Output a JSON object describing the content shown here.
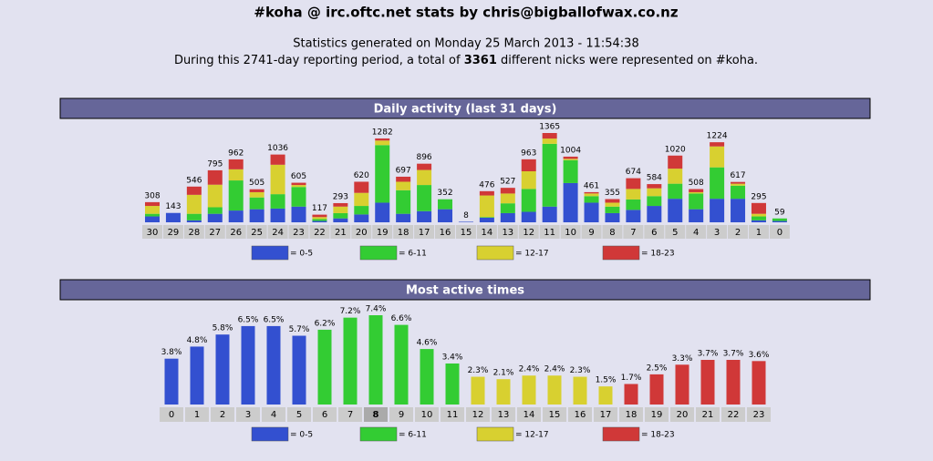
{
  "header": {
    "title": "#koha @ irc.oftc.net stats by chris@bigballofwax.co.nz",
    "generated": "Statistics generated on Monday 25 March 2013 - 11:54:38",
    "period_before": "During this 2741-day reporting period, a total of",
    "nicks": "3361",
    "period_after": "different nicks were represented on #koha."
  },
  "chart_data": [
    {
      "type": "stacked-bar",
      "title": "Daily activity (last 31 days)",
      "categories": [
        "30",
        "29",
        "28",
        "27",
        "26",
        "25",
        "24",
        "23",
        "22",
        "21",
        "20",
        "19",
        "18",
        "17",
        "16",
        "15",
        "14",
        "13",
        "12",
        "11",
        "10",
        "9",
        "8",
        "7",
        "6",
        "5",
        "4",
        "3",
        "2",
        "1",
        "0"
      ],
      "totals": [
        308,
        143,
        546,
        795,
        962,
        505,
        1036,
        605,
        117,
        293,
        620,
        1282,
        697,
        896,
        352,
        8,
        476,
        527,
        963,
        1365,
        1004,
        461,
        355,
        674,
        584,
        1020,
        508,
        1224,
        617,
        295,
        59
      ],
      "series": [
        {
          "name": "= 0-5",
          "color": "#3350d0",
          "values": [
            90,
            143,
            30,
            130,
            180,
            200,
            210,
            240,
            20,
            60,
            120,
            300,
            130,
            170,
            200,
            8,
            70,
            140,
            160,
            240,
            600,
            300,
            140,
            190,
            250,
            360,
            200,
            360,
            360,
            30,
            20
          ]
        },
        {
          "name": "= 6-11",
          "color": "#33cc33",
          "values": [
            40,
            0,
            100,
            100,
            460,
            180,
            220,
            300,
            30,
            80,
            130,
            880,
            360,
            400,
            152,
            0,
            10,
            150,
            350,
            960,
            350,
            100,
            100,
            160,
            150,
            230,
            240,
            480,
            200,
            60,
            39
          ]
        },
        {
          "name": "= 12-17",
          "color": "#d8d030",
          "values": [
            120,
            0,
            290,
            345,
            170,
            80,
            450,
            30,
            30,
            100,
            200,
            70,
            130,
            230,
            0,
            0,
            330,
            150,
            270,
            80,
            20,
            41,
            60,
            160,
            120,
            230,
            20,
            320,
            30,
            40,
            0
          ]
        },
        {
          "name": "= 18-23",
          "color": "#d03838",
          "values": [
            58,
            0,
            126,
            220,
            152,
            45,
            156,
            35,
            37,
            53,
            170,
            32,
            77,
            96,
            0,
            0,
            66,
            87,
            183,
            85,
            34,
            20,
            55,
            164,
            64,
            200,
            48,
            64,
            27,
            165,
            0
          ]
        }
      ]
    },
    {
      "type": "bar",
      "title": "Most active times",
      "categories": [
        "0",
        "1",
        "2",
        "3",
        "4",
        "5",
        "6",
        "7",
        "8",
        "9",
        "10",
        "11",
        "12",
        "13",
        "14",
        "15",
        "16",
        "17",
        "18",
        "19",
        "20",
        "21",
        "22",
        "23"
      ],
      "values": [
        3.8,
        4.8,
        5.8,
        6.5,
        6.5,
        5.7,
        6.2,
        7.2,
        7.4,
        6.6,
        4.6,
        3.4,
        2.3,
        2.1,
        2.4,
        2.4,
        2.3,
        1.5,
        1.7,
        2.5,
        3.3,
        3.7,
        3.7,
        3.6
      ],
      "value_labels": [
        "3.8%",
        "4.8%",
        "5.8%",
        "6.5%",
        "6.5%",
        "5.7%",
        "6.2%",
        "7.2%",
        "7.4%",
        "6.6%",
        "4.6%",
        "3.4%",
        "2.3%",
        "2.1%",
        "2.4%",
        "2.4%",
        "2.3%",
        "1.5%",
        "1.7%",
        "2.5%",
        "3.3%",
        "3.7%",
        "3.7%",
        "3.6%"
      ],
      "colors": [
        "#3350d0",
        "#3350d0",
        "#3350d0",
        "#3350d0",
        "#3350d0",
        "#3350d0",
        "#33cc33",
        "#33cc33",
        "#33cc33",
        "#33cc33",
        "#33cc33",
        "#33cc33",
        "#d8d030",
        "#d8d030",
        "#d8d030",
        "#d8d030",
        "#d8d030",
        "#d8d030",
        "#d03838",
        "#d03838",
        "#d03838",
        "#d03838",
        "#d03838",
        "#d03838"
      ],
      "highlight": 8,
      "legend": [
        {
          "name": "= 0-5",
          "color": "#3350d0"
        },
        {
          "name": "= 6-11",
          "color": "#33cc33"
        },
        {
          "name": "= 12-17",
          "color": "#d8d030"
        },
        {
          "name": "= 18-23",
          "color": "#d03838"
        }
      ]
    }
  ]
}
